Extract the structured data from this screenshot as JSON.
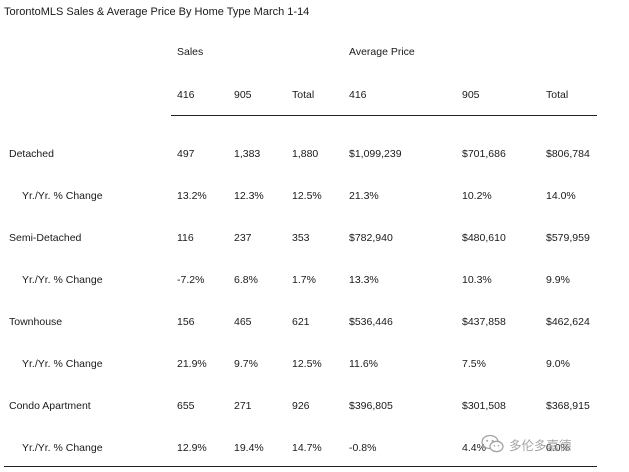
{
  "title": "TorontoMLS Sales & Average Price  By Home Type March 1-14",
  "groups": {
    "sales": "Sales",
    "avg_price": "Average Price"
  },
  "columns": [
    "416",
    "905",
    "Total",
    "416",
    "905",
    "Total"
  ],
  "rows": [
    {
      "label": "Detached",
      "values": [
        "497",
        "1,383",
        "1,880",
        "$1,099,239",
        "$701,686",
        "$806,784"
      ]
    },
    {
      "label": "Yr./Yr. % Change",
      "values": [
        "13.2%",
        "12.3%",
        "12.5%",
        "21.3%",
        "10.2%",
        "14.0%"
      ]
    },
    {
      "label": "Semi-Detached",
      "values": [
        "116",
        "237",
        "353",
        "$782,940",
        "$480,610",
        "$579,959"
      ]
    },
    {
      "label": "Yr./Yr. % Change",
      "values": [
        "-7.2%",
        "6.8%",
        "1.7%",
        "13.3%",
        "10.3%",
        "9.9%"
      ]
    },
    {
      "label": "Townhouse",
      "values": [
        "156",
        "465",
        "621",
        "$536,446",
        "$437,858",
        "$462,624"
      ]
    },
    {
      "label": "Yr./Yr. % Change",
      "values": [
        "21.9%",
        "9.7%",
        "12.5%",
        "11.6%",
        "7.5%",
        "9.0%"
      ]
    },
    {
      "label": "Condo Apartment",
      "values": [
        "655",
        "271",
        "926",
        "$396,805",
        "$301,508",
        "$368,915"
      ]
    },
    {
      "label": "Yr./Yr. % Change",
      "values": [
        "12.9%",
        "19.4%",
        "14.7%",
        "-0.8%",
        "4.4%",
        "0.0%"
      ]
    }
  ],
  "watermark": {
    "text": "多伦多嘉德",
    "icon": "wechat-icon"
  }
}
